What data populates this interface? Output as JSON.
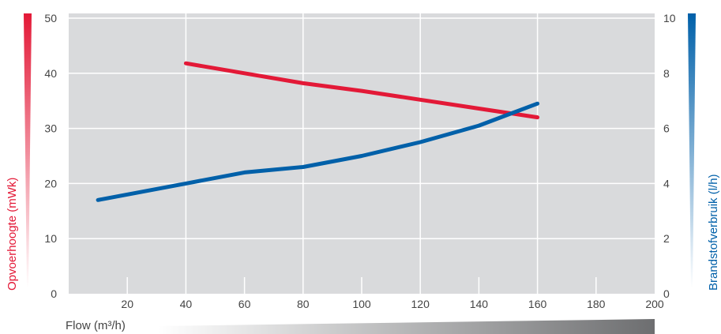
{
  "chart_data": {
    "type": "line",
    "xlabel": "Flow (m³/h)",
    "ylabel_left": "Opvoerhoogte (mWk)",
    "ylabel_right": "Brandstofverbruik (l/h)",
    "x_ticks": [
      "20",
      "40",
      "60",
      "80",
      "100",
      "120",
      "140",
      "160",
      "180",
      "200"
    ],
    "y_left_ticks": [
      "0",
      "10",
      "20",
      "30",
      "40",
      "50"
    ],
    "y_right_ticks": [
      "0",
      "2",
      "4",
      "6",
      "8",
      "10"
    ],
    "xlim": [
      0,
      200
    ],
    "ylim_left": [
      0,
      50
    ],
    "ylim_right": [
      0,
      10
    ],
    "grid": true,
    "series": [
      {
        "axis": "left",
        "color": "#e31937",
        "x": [
          40,
          60,
          80,
          100,
          120,
          140,
          160
        ],
        "y": [
          41.8,
          40.0,
          38.2,
          36.8,
          35.2,
          33.6,
          32.0
        ]
      },
      {
        "axis": "right",
        "color": "#0060a9",
        "x": [
          10,
          40,
          60,
          80,
          100,
          120,
          140,
          160
        ],
        "y": [
          3.4,
          4.0,
          4.4,
          4.6,
          5.0,
          5.5,
          6.1,
          6.9
        ]
      }
    ],
    "colors": {
      "left_axis": "#e31937",
      "right_axis": "#0060a9",
      "plot_background": "#d9dadc",
      "grid": "#ffffff",
      "x_gradient": "#6d6e70"
    }
  }
}
